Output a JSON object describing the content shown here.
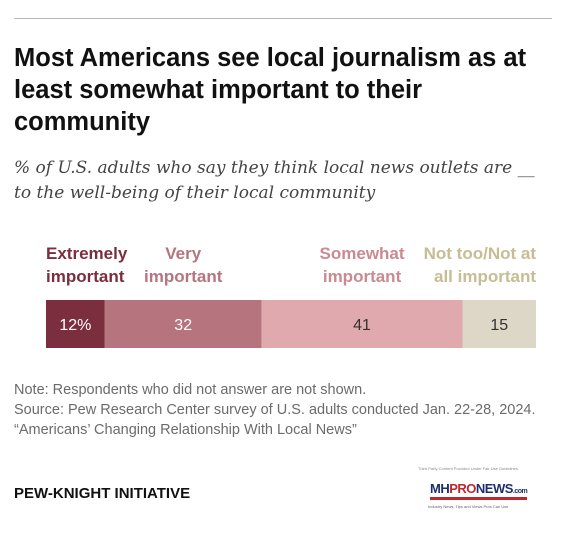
{
  "title": "Most Americans see local journalism as at least somewhat important to their community",
  "subtitle": "% of U.S. adults who say they think local news outlets are __ to the well-being of their local community",
  "chart_data": {
    "type": "bar",
    "orientation": "horizontal-stacked",
    "categories": [
      "Extremely important",
      "Very important",
      "Somewhat important",
      "Not too/Not at all important"
    ],
    "category_lines": [
      [
        "Extremely",
        "important"
      ],
      [
        "Very",
        "important"
      ],
      [
        "Somewhat",
        "important"
      ],
      [
        "Not too/Not at",
        "all important"
      ]
    ],
    "values": [
      12,
      32,
      41,
      15
    ],
    "data_labels": [
      "12%",
      "32",
      "41",
      "15"
    ],
    "colors": [
      "#7a2e3e",
      "#b5747e",
      "#e0a9ad",
      "#dcd7c6"
    ],
    "label_colors": [
      "#7a2e3e",
      "#b5747e",
      "#c98a90",
      "#c7bc93"
    ],
    "value_text_colors": [
      "#ffffff",
      "#ffffff",
      "#333333",
      "#333333"
    ],
    "xlim": [
      0,
      100
    ]
  },
  "notes": [
    "Note: Respondents who did not answer are not shown.",
    "Source: Pew Research Center survey of U.S. adults conducted Jan. 22-28, 2024.",
    "“Americans’ Changing Relationship With Local News”"
  ],
  "footer": "PEW-KNIGHT INITIATIVE",
  "logo": {
    "top_text": "Third Party Content Provided Under Fair Use Guidelines.",
    "mh": "MH",
    "pro": "PRO",
    "news": "NEWS",
    "suffix": ".com",
    "tagline": "Industry News, Tips and Views Pros Can Use"
  }
}
